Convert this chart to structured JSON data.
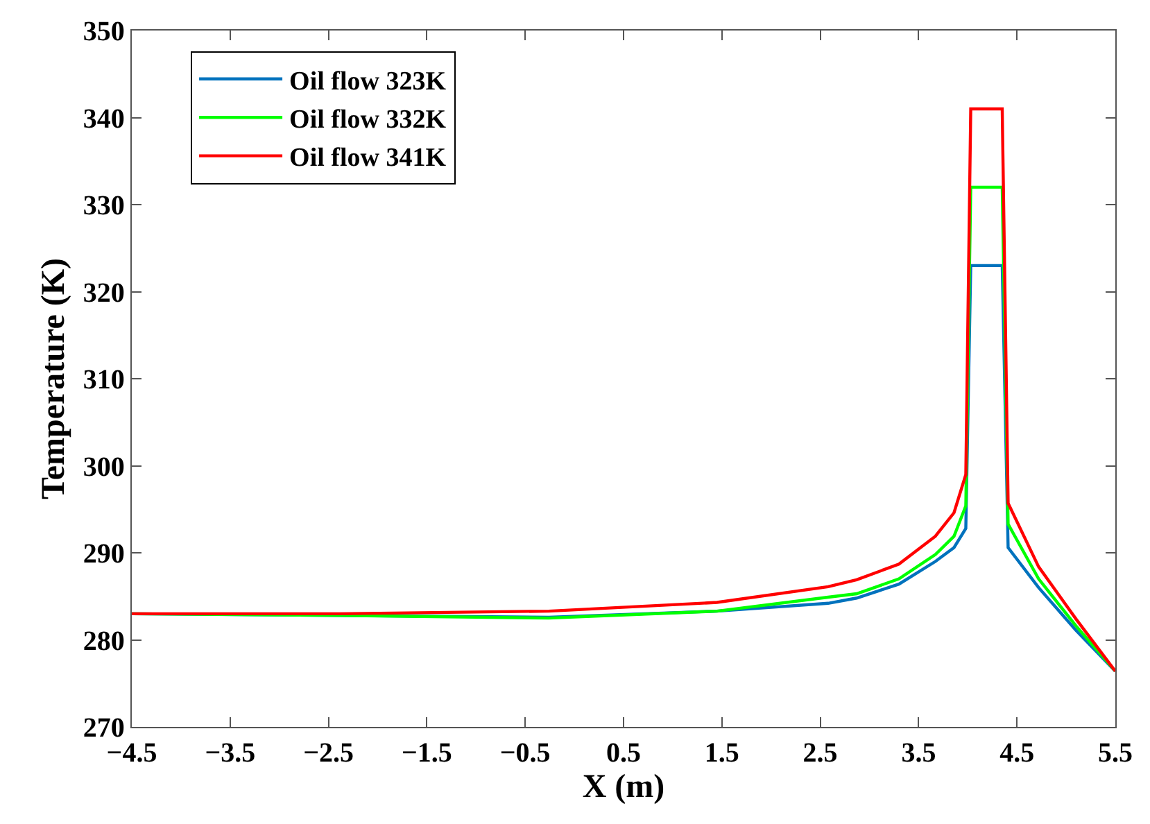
{
  "chart_data": {
    "type": "line",
    "xlabel": "X (m)",
    "ylabel": "Temperature (K)",
    "xlim": [
      -4.5,
      5.5
    ],
    "ylim": [
      270,
      350
    ],
    "xticks": [
      {
        "value": -4.5,
        "label": "−4.5"
      },
      {
        "value": -3.5,
        "label": "−3.5"
      },
      {
        "value": -2.5,
        "label": "−2.5"
      },
      {
        "value": -1.5,
        "label": "−1.5"
      },
      {
        "value": -0.5,
        "label": "−0.5"
      },
      0.5,
      1.5,
      2.5,
      3.5,
      4.5,
      5.5
    ],
    "yticks": [
      270,
      280,
      290,
      300,
      310,
      320,
      330,
      340,
      350
    ],
    "legend": "top left",
    "line_style": "solid",
    "marker": "none",
    "series": [
      {
        "name": "Oil flow 323K",
        "color": "#0072bd",
        "x": [
          -4.5,
          -2.39,
          -0.26,
          1.45,
          2.58,
          2.87,
          3.3,
          3.67,
          3.86,
          3.98,
          4.03,
          4.35,
          4.41,
          4.72,
          5.1,
          5.5
        ],
        "values": [
          283.0,
          282.8,
          282.6,
          283.3,
          284.2,
          284.8,
          286.4,
          289.0,
          290.6,
          292.8,
          323,
          323,
          290.6,
          286.0,
          281.1,
          276.4
        ]
      },
      {
        "name": "Oil flow 332K",
        "color": "#00ff00",
        "x": [
          -4.5,
          -2.39,
          -0.26,
          1.45,
          2.58,
          2.87,
          3.3,
          3.67,
          3.86,
          3.98,
          4.03,
          4.35,
          4.41,
          4.72,
          5.1,
          5.5
        ],
        "values": [
          283.0,
          282.8,
          282.5,
          283.3,
          284.9,
          285.3,
          287.0,
          289.8,
          291.9,
          295.4,
          332,
          332,
          293.3,
          287.0,
          281.6,
          276.4
        ]
      },
      {
        "name": "Oil flow 341K",
        "color": "#ff0000",
        "x": [
          -4.5,
          -2.39,
          -0.26,
          1.45,
          2.58,
          2.87,
          3.3,
          3.67,
          3.86,
          3.98,
          4.03,
          4.35,
          4.41,
          4.72,
          5.1,
          5.5
        ],
        "values": [
          283.0,
          283.0,
          283.3,
          284.3,
          286.1,
          286.9,
          288.7,
          291.9,
          294.6,
          299.0,
          341,
          341,
          295.7,
          288.4,
          282.4,
          276.4
        ]
      }
    ]
  }
}
